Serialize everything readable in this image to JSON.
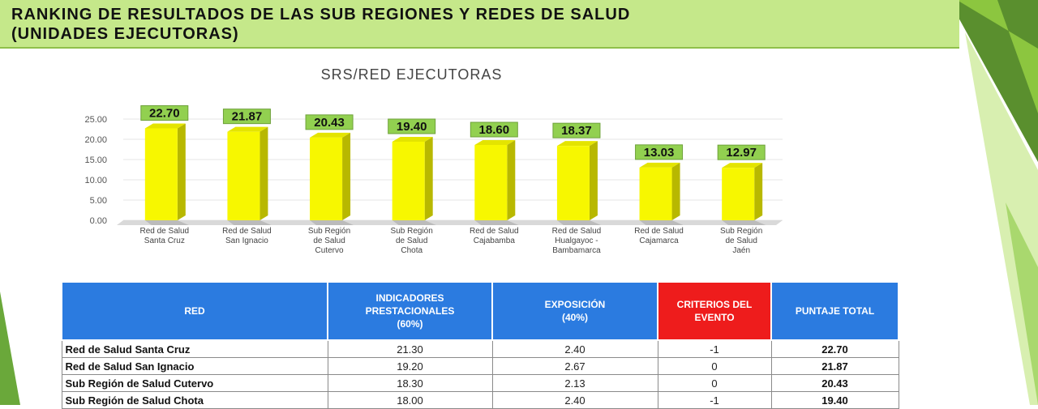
{
  "slide": {
    "title_line1": "RANKING DE RESULTADOS DE LAS SUB REGIONES Y REDES DE SALUD",
    "title_line2": "(UNIDADES EJECUTORAS)"
  },
  "chart_data": {
    "type": "bar",
    "title": "SRS/RED EJECUTORAS",
    "categories": [
      [
        "Red de Salud",
        "Santa Cruz"
      ],
      [
        "Red de Salud",
        "San Ignacio"
      ],
      [
        "Sub Región",
        "de Salud",
        "Cutervo"
      ],
      [
        "Sub Región",
        "de Salud",
        "Chota"
      ],
      [
        "Red de Salud",
        "Cajabamba"
      ],
      [
        "Red de Salud",
        "Hualgayoc -",
        "Bambamarca"
      ],
      [
        "Red de Salud",
        "Cajamarca"
      ],
      [
        "Sub Región",
        "de Salud",
        "Jaén"
      ]
    ],
    "values": [
      22.7,
      21.87,
      20.43,
      19.4,
      18.6,
      18.37,
      13.03,
      12.97
    ],
    "value_labels": [
      "22.70",
      "21.87",
      "20.43",
      "19.40",
      "18.60",
      "18.37",
      "13.03",
      "12.97"
    ],
    "yticks": [
      "0.00",
      "5.00",
      "10.00",
      "15.00",
      "20.00",
      "25.00"
    ],
    "ylim": [
      0,
      25
    ],
    "grid": true,
    "legend": "none",
    "bar_color": "#f7f700",
    "label_box_color": "#92d050"
  },
  "table": {
    "headers": [
      {
        "lines": [
          "RED"
        ]
      },
      {
        "lines": [
          "INDICADORES",
          "PRESTACIONALES",
          "(60%)"
        ]
      },
      {
        "lines": [
          "EXPOSICIÓN",
          "(40%)"
        ]
      },
      {
        "lines": [
          "CRITERIOS DEL",
          "EVENTO"
        ]
      },
      {
        "lines": [
          "PUNTAJE TOTAL"
        ]
      }
    ],
    "rows": [
      {
        "red": "Red de Salud Santa Cruz",
        "indicadores": "21.30",
        "exposicion": "2.40",
        "criterios": "-1",
        "total": "22.70"
      },
      {
        "red": "Red de Salud San Ignacio",
        "indicadores": "19.20",
        "exposicion": "2.67",
        "criterios": "0",
        "total": "21.87"
      },
      {
        "red": "Sub Región de Salud Cutervo",
        "indicadores": "18.30",
        "exposicion": "2.13",
        "criterios": "0",
        "total": "20.43"
      },
      {
        "red": "Sub Región de Salud Chota",
        "indicadores": "18.00",
        "exposicion": "2.40",
        "criterios": "-1",
        "total": "19.40"
      }
    ]
  },
  "colors": {
    "title_bar": "#c5e88a",
    "header_blue": "#2b7be0",
    "header_red": "#ee1c1c",
    "deco_green": "#7cb342"
  }
}
